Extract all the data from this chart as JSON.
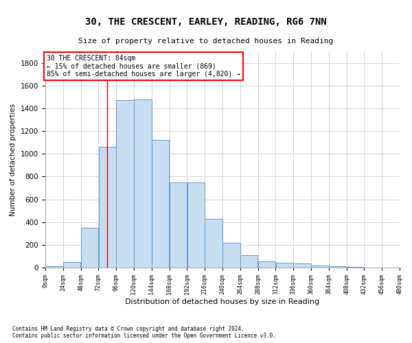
{
  "title": "30, THE CRESCENT, EARLEY, READING, RG6 7NN",
  "subtitle": "Size of property relative to detached houses in Reading",
  "xlabel": "Distribution of detached houses by size in Reading",
  "ylabel": "Number of detached properties",
  "footnote1": "Contains HM Land Registry data © Crown copyright and database right 2024.",
  "footnote2": "Contains public sector information licensed under the Open Government Licence v3.0.",
  "bar_color": "#c9ddf0",
  "bar_edgecolor": "#5b9bd5",
  "annotation_text": "30 THE CRESCENT: 84sqm\n← 15% of detached houses are smaller (869)\n85% of semi-detached houses are larger (4,820) →",
  "vline_x": 84,
  "vline_color": "#cc0000",
  "bin_edges": [
    0,
    24,
    48,
    72,
    96,
    120,
    144,
    168,
    192,
    216,
    240,
    264,
    288,
    312,
    336,
    360,
    384,
    408,
    432,
    456,
    480
  ],
  "values": [
    10,
    50,
    350,
    1060,
    1470,
    1480,
    1120,
    750,
    750,
    430,
    220,
    110,
    55,
    40,
    35,
    20,
    15,
    5,
    0,
    0
  ],
  "ylim": [
    0,
    1900
  ],
  "yticks": [
    0,
    200,
    400,
    600,
    800,
    1000,
    1200,
    1400,
    1600,
    1800
  ],
  "xlim": [
    0,
    480
  ],
  "background_color": "#ffffff",
  "grid_color": "#cccccc",
  "title_fontsize": 10,
  "subtitle_fontsize": 8,
  "ylabel_fontsize": 7.5,
  "xlabel_fontsize": 8,
  "ytick_fontsize": 7.5,
  "xtick_fontsize": 6,
  "footnote_fontsize": 5.5,
  "annot_fontsize": 7
}
